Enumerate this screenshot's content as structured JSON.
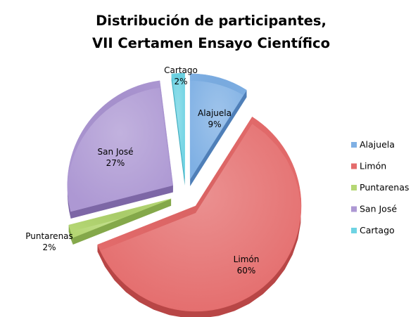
{
  "chart_data": {
    "type": "pie",
    "title_lines": [
      "Distribución de participantes,",
      "VII Certamen Ensayo Científico"
    ],
    "categories": [
      "Alajuela",
      "Limón",
      "Puntarenas",
      "San José",
      "Cartago"
    ],
    "values": [
      9,
      60,
      2,
      27,
      2
    ],
    "value_labels": [
      "9%",
      "60%",
      "2%",
      "27%",
      "2%"
    ],
    "exploded": true,
    "three_d": true,
    "legend_position": "right",
    "colors": [
      "#7fb0e4",
      "#e46c6c",
      "#b5d774",
      "#ad98d3",
      "#6ed3e3"
    ],
    "side_colors": [
      "#4f7fb8",
      "#b84646",
      "#84a84a",
      "#7d67a6",
      "#3fa8ba"
    ]
  }
}
